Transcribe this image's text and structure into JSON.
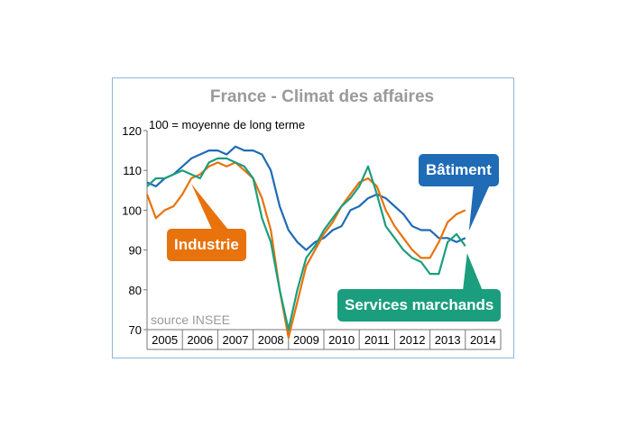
{
  "chart_data": {
    "type": "line",
    "title": "France - Climat des affaires",
    "subtitle": "100 = moyenne de long terme",
    "source": "source INSEE",
    "xlabel": "",
    "ylabel": "",
    "ylim": [
      70,
      120
    ],
    "yticks": [
      70,
      80,
      90,
      100,
      110,
      120
    ],
    "xlim": [
      "2005-01",
      "2014-12"
    ],
    "xticks": [
      "2005",
      "2006",
      "2007",
      "2008",
      "2009",
      "2010",
      "2011",
      "2012",
      "2013",
      "2014"
    ],
    "grid": false,
    "series": [
      {
        "name": "Bâtiment",
        "color": "#1f6bb5",
        "x": [
          "2005-01",
          "2005-04",
          "2005-07",
          "2005-10",
          "2006-01",
          "2006-04",
          "2006-07",
          "2006-10",
          "2007-01",
          "2007-04",
          "2007-07",
          "2007-10",
          "2008-01",
          "2008-04",
          "2008-07",
          "2008-10",
          "2009-01",
          "2009-04",
          "2009-07",
          "2009-10",
          "2010-01",
          "2010-04",
          "2010-07",
          "2010-10",
          "2011-01",
          "2011-04",
          "2011-07",
          "2011-10",
          "2012-01",
          "2012-04",
          "2012-07",
          "2012-10",
          "2013-01",
          "2013-04",
          "2013-07",
          "2013-10",
          "2014-01"
        ],
        "values": [
          107,
          106,
          108,
          109,
          111,
          113,
          114,
          115,
          115,
          114,
          116,
          115,
          115,
          114,
          110,
          101,
          95,
          92,
          90,
          92,
          93,
          95,
          96,
          100,
          101,
          103,
          104,
          103,
          101,
          99,
          96,
          95,
          95,
          93,
          93,
          92,
          93
        ]
      },
      {
        "name": "Industrie",
        "color": "#e8720c",
        "x": [
          "2005-01",
          "2005-04",
          "2005-07",
          "2005-10",
          "2006-01",
          "2006-04",
          "2006-07",
          "2006-10",
          "2007-01",
          "2007-04",
          "2007-07",
          "2007-10",
          "2008-01",
          "2008-04",
          "2008-07",
          "2008-10",
          "2009-01",
          "2009-04",
          "2009-07",
          "2009-10",
          "2010-01",
          "2010-04",
          "2010-07",
          "2010-10",
          "2011-01",
          "2011-04",
          "2011-07",
          "2011-10",
          "2012-01",
          "2012-04",
          "2012-07",
          "2012-10",
          "2013-01",
          "2013-04",
          "2013-07",
          "2013-10",
          "2014-01"
        ],
        "values": [
          104,
          98,
          100,
          101,
          104,
          108,
          109,
          111,
          112,
          111,
          112,
          110,
          108,
          103,
          95,
          80,
          68,
          77,
          86,
          90,
          94,
          97,
          101,
          104,
          107,
          108,
          106,
          100,
          96,
          93,
          90,
          88,
          88,
          92,
          97,
          99,
          100
        ]
      },
      {
        "name": "Services marchands",
        "color": "#1a9e7e",
        "x": [
          "2005-01",
          "2005-04",
          "2005-07",
          "2005-10",
          "2006-01",
          "2006-04",
          "2006-07",
          "2006-10",
          "2007-01",
          "2007-04",
          "2007-07",
          "2007-10",
          "2008-01",
          "2008-04",
          "2008-07",
          "2008-10",
          "2009-01",
          "2009-04",
          "2009-07",
          "2009-10",
          "2010-01",
          "2010-04",
          "2010-07",
          "2010-10",
          "2011-01",
          "2011-04",
          "2011-07",
          "2011-10",
          "2012-01",
          "2012-04",
          "2012-07",
          "2012-10",
          "2013-01",
          "2013-04",
          "2013-07",
          "2013-10",
          "2014-01"
        ],
        "values": [
          106,
          108,
          108,
          109,
          110,
          109,
          108,
          112,
          113,
          113,
          112,
          111,
          108,
          98,
          92,
          80,
          70,
          80,
          88,
          91,
          95,
          98,
          101,
          103,
          106,
          111,
          104,
          96,
          93,
          90,
          88,
          87,
          84,
          84,
          92,
          94,
          91
        ]
      }
    ],
    "annotations": [
      {
        "label": "Bâtiment",
        "series": "Bâtiment"
      },
      {
        "label": "Industrie",
        "series": "Industrie"
      },
      {
        "label": "Services marchands",
        "series": "Services marchands"
      }
    ]
  }
}
